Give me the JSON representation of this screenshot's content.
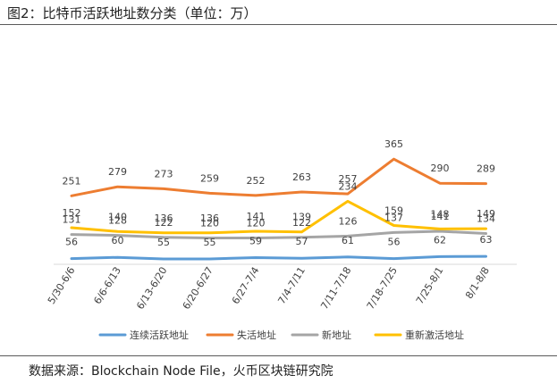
{
  "title": "图2：比特币活跃地址数分类（单位：万）",
  "source": "数据来源：Blockchain Node File，火币区块链研究院",
  "colors": {
    "连续活跃地址": "#5b9bd5",
    "失活地址": "#ed7d31",
    "新地址": "#a5a5a5",
    "重新激活地址": "#ffc000"
  },
  "chart_data": {
    "type": "line",
    "categories": [
      "5/30-6/6",
      "6/6-6/13",
      "6/13-6/20",
      "6/20-6/27",
      "6/27-7/4",
      "7/4-7/11",
      "7/11-7/18",
      "7/18-7/25",
      "7/25-8/1",
      "8/1-8/8"
    ],
    "series": [
      {
        "name": "连续活跃地址",
        "values": [
          56,
          60,
          55,
          55,
          59,
          57,
          61,
          56,
          62,
          63
        ]
      },
      {
        "name": "失活地址",
        "values": [
          251,
          279,
          273,
          259,
          252,
          263,
          257,
          365,
          290,
          289
        ]
      },
      {
        "name": "新地址",
        "values": [
          131,
          128,
          122,
          120,
          120,
          122,
          126,
          137,
          141,
          134
        ]
      },
      {
        "name": "重新激活地址",
        "values": [
          152,
          140,
          136,
          136,
          141,
          139,
          234,
          159,
          148,
          149
        ]
      }
    ],
    "legend_position": "bottom",
    "grid": false
  }
}
